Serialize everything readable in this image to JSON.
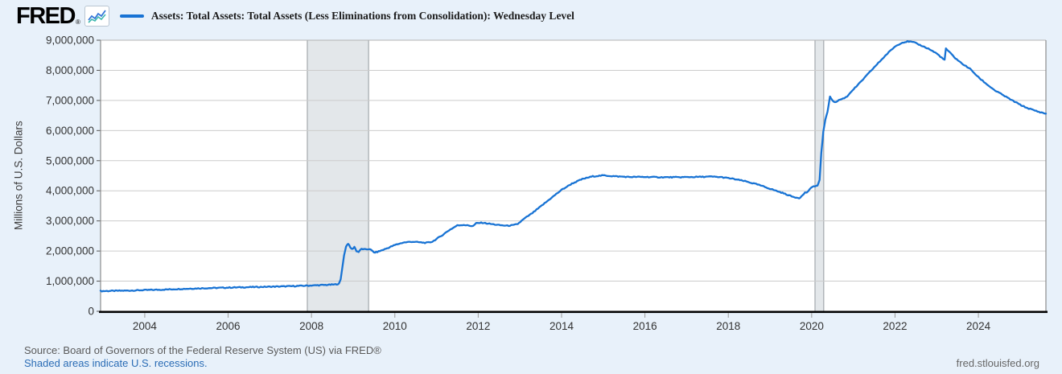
{
  "header": {
    "logo_text": "FRED",
    "registered_mark": "®",
    "legend_label": "Assets: Total Assets: Total Assets (Less Eliminations from Consolidation): Wednesday Level"
  },
  "footer": {
    "source_text": "Source: Board of Governors of the Federal Reserve System (US) via FRED®",
    "recession_note": "Shaded areas indicate U.S. recessions.",
    "site_link": "fred.stlouisfed.org"
  },
  "chart_data": {
    "type": "line",
    "title": "Assets: Total Assets: Total Assets (Less Eliminations from Consolidation): Wednesday Level",
    "xlabel": "",
    "ylabel": "Millions of U.S. Dollars",
    "legend_position": "top-left",
    "grid": "horizontal",
    "x_range": [
      2002.94,
      2025.62
    ],
    "y_range": [
      0,
      9000000
    ],
    "x_ticks": [
      2004,
      2006,
      2008,
      2010,
      2012,
      2014,
      2016,
      2018,
      2020,
      2022,
      2024
    ],
    "y_ticks": [
      0,
      1000000,
      2000000,
      3000000,
      4000000,
      5000000,
      6000000,
      7000000,
      8000000,
      9000000
    ],
    "recession_bands": [
      [
        2007.9,
        2009.37
      ],
      [
        2020.08,
        2020.29
      ]
    ],
    "colors": {
      "line": "#1873d4",
      "recession_fill": "#e3e7ea",
      "recession_edge": "#94999e",
      "gridline": "#cccccc",
      "frame": "#8c8c8c",
      "axis_bottom": "#000000",
      "plot_background": "#ffffff",
      "tick_label": "#333333"
    },
    "noise_amplitude": 16000,
    "series": [
      {
        "name": "Assets: Total Assets: Total Assets (Less Eliminations from Consolidation): Wednesday Level",
        "units": "Millions of U.S. Dollars",
        "points": [
          [
            2002.94,
            670000
          ],
          [
            2003.3,
            678000
          ],
          [
            2003.7,
            690000
          ],
          [
            2004.0,
            703000
          ],
          [
            2004.5,
            722000
          ],
          [
            2005.0,
            748000
          ],
          [
            2005.5,
            768000
          ],
          [
            2006.0,
            786000
          ],
          [
            2006.5,
            800000
          ],
          [
            2007.0,
            815000
          ],
          [
            2007.5,
            832000
          ],
          [
            2008.0,
            856000
          ],
          [
            2008.3,
            872000
          ],
          [
            2008.55,
            888000
          ],
          [
            2008.66,
            910000
          ],
          [
            2008.7,
            1050000
          ],
          [
            2008.74,
            1450000
          ],
          [
            2008.78,
            1850000
          ],
          [
            2008.83,
            2150000
          ],
          [
            2008.88,
            2250000
          ],
          [
            2008.93,
            2120000
          ],
          [
            2008.98,
            2060000
          ],
          [
            2009.03,
            2140000
          ],
          [
            2009.08,
            2000000
          ],
          [
            2009.13,
            1970000
          ],
          [
            2009.2,
            2070000
          ],
          [
            2009.3,
            2050000
          ],
          [
            2009.4,
            2070000
          ],
          [
            2009.5,
            1950000
          ],
          [
            2009.58,
            1970000
          ],
          [
            2009.7,
            2030000
          ],
          [
            2009.85,
            2110000
          ],
          [
            2010.0,
            2200000
          ],
          [
            2010.2,
            2280000
          ],
          [
            2010.4,
            2310000
          ],
          [
            2010.6,
            2290000
          ],
          [
            2010.75,
            2270000
          ],
          [
            2010.9,
            2310000
          ],
          [
            2011.1,
            2490000
          ],
          [
            2011.3,
            2690000
          ],
          [
            2011.5,
            2850000
          ],
          [
            2011.65,
            2870000
          ],
          [
            2011.8,
            2840000
          ],
          [
            2011.88,
            2830000
          ],
          [
            2011.95,
            2920000
          ],
          [
            2012.1,
            2940000
          ],
          [
            2012.3,
            2900000
          ],
          [
            2012.5,
            2860000
          ],
          [
            2012.7,
            2840000
          ],
          [
            2012.85,
            2860000
          ],
          [
            2012.95,
            2900000
          ],
          [
            2013.1,
            3070000
          ],
          [
            2013.3,
            3260000
          ],
          [
            2013.5,
            3480000
          ],
          [
            2013.75,
            3760000
          ],
          [
            2014.0,
            4030000
          ],
          [
            2014.25,
            4240000
          ],
          [
            2014.5,
            4390000
          ],
          [
            2014.75,
            4480000
          ],
          [
            2015.0,
            4510000
          ],
          [
            2015.3,
            4480000
          ],
          [
            2015.6,
            4460000
          ],
          [
            2016.0,
            4460000
          ],
          [
            2016.4,
            4450000
          ],
          [
            2016.8,
            4450000
          ],
          [
            2017.2,
            4460000
          ],
          [
            2017.6,
            4470000
          ],
          [
            2017.85,
            4450000
          ],
          [
            2018.1,
            4400000
          ],
          [
            2018.4,
            4320000
          ],
          [
            2018.7,
            4210000
          ],
          [
            2019.0,
            4070000
          ],
          [
            2019.3,
            3930000
          ],
          [
            2019.55,
            3800000
          ],
          [
            2019.7,
            3760000
          ],
          [
            2019.78,
            3840000
          ],
          [
            2019.84,
            3950000
          ],
          [
            2019.88,
            3930000
          ],
          [
            2019.95,
            4050000
          ],
          [
            2020.05,
            4150000
          ],
          [
            2020.14,
            4170000
          ],
          [
            2020.19,
            4360000
          ],
          [
            2020.23,
            5250000
          ],
          [
            2020.28,
            5960000
          ],
          [
            2020.33,
            6370000
          ],
          [
            2020.38,
            6620000
          ],
          [
            2020.44,
            7130000
          ],
          [
            2020.5,
            7010000
          ],
          [
            2020.56,
            6930000
          ],
          [
            2020.65,
            7010000
          ],
          [
            2020.75,
            7060000
          ],
          [
            2020.85,
            7130000
          ],
          [
            2020.95,
            7300000
          ],
          [
            2021.1,
            7500000
          ],
          [
            2021.3,
            7800000
          ],
          [
            2021.5,
            8100000
          ],
          [
            2021.7,
            8390000
          ],
          [
            2021.85,
            8600000
          ],
          [
            2022.0,
            8790000
          ],
          [
            2022.15,
            8910000
          ],
          [
            2022.3,
            8960000
          ],
          [
            2022.45,
            8930000
          ],
          [
            2022.6,
            8840000
          ],
          [
            2022.8,
            8720000
          ],
          [
            2023.0,
            8560000
          ],
          [
            2023.12,
            8420000
          ],
          [
            2023.19,
            8340000
          ],
          [
            2023.22,
            8730000
          ],
          [
            2023.3,
            8610000
          ],
          [
            2023.45,
            8400000
          ],
          [
            2023.6,
            8230000
          ],
          [
            2023.8,
            8050000
          ],
          [
            2024.0,
            7770000
          ],
          [
            2024.2,
            7540000
          ],
          [
            2024.4,
            7330000
          ],
          [
            2024.6,
            7170000
          ],
          [
            2024.8,
            7010000
          ],
          [
            2025.0,
            6860000
          ],
          [
            2025.15,
            6760000
          ],
          [
            2025.3,
            6690000
          ],
          [
            2025.45,
            6620000
          ],
          [
            2025.62,
            6560000
          ]
        ]
      }
    ]
  }
}
